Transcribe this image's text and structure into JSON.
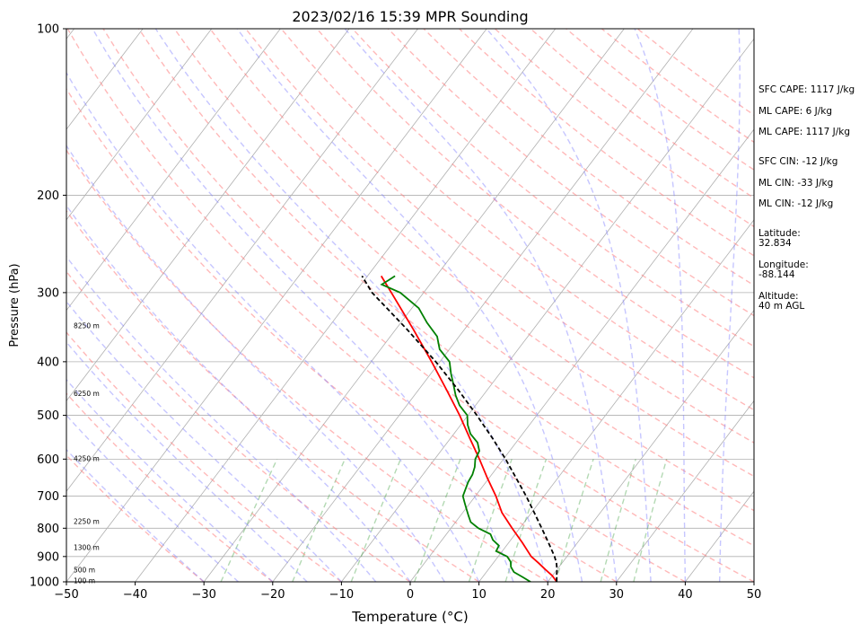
{
  "chart_data": {
    "type": "line",
    "title": "2023/02/16 15:39 MPR Sounding",
    "xlabel": "Temperature (°C)",
    "ylabel": "Pressure (hPa)",
    "xlim": [
      -50,
      50
    ],
    "ylim": [
      1000,
      100
    ],
    "y_scale": "log",
    "skew": true,
    "x_ticks": [
      -50,
      -40,
      -30,
      -20,
      -10,
      0,
      10,
      20,
      30,
      40,
      50
    ],
    "x_tick_labels": [
      "−50",
      "−40",
      "−30",
      "−20",
      "−10",
      "0",
      "10",
      "20",
      "30",
      "40",
      "50"
    ],
    "y_ticks": [
      100,
      200,
      300,
      400,
      500,
      600,
      700,
      800,
      900,
      1000
    ],
    "y_tick_labels": [
      "100",
      "200",
      "300",
      "400",
      "500",
      "600",
      "700",
      "800",
      "900",
      "1000"
    ],
    "grid": true,
    "height_labels": [
      {
        "p": 999,
        "text": "100 m"
      },
      {
        "p": 955,
        "text": "500 m"
      },
      {
        "p": 870,
        "text": "1300 m"
      },
      {
        "p": 780,
        "text": "2250 m"
      },
      {
        "p": 600,
        "text": "4250 m"
      },
      {
        "p": 458,
        "text": "6250 m"
      },
      {
        "p": 345,
        "text": "8250 m"
      }
    ],
    "series": [
      {
        "role": "temperature",
        "color": "#ff0000",
        "style": "solid",
        "p": [
          1000,
          975,
          950,
          925,
          900,
          850,
          800,
          750,
          700,
          650,
          600,
          550,
          500,
          450,
          400,
          350,
          300,
          280
        ],
        "t": [
          21.3,
          20.0,
          18.3,
          16.6,
          14.8,
          12.0,
          8.9,
          5.7,
          3.0,
          -0.2,
          -3.5,
          -7.2,
          -11.2,
          -15.9,
          -21.2,
          -27.4,
          -34.7,
          -38.0
        ]
      },
      {
        "role": "dewpoint",
        "color": "#008000",
        "style": "solid",
        "p": [
          1000,
          980,
          960,
          940,
          920,
          900,
          880,
          860,
          840,
          820,
          800,
          780,
          760,
          740,
          720,
          700,
          680,
          660,
          640,
          620,
          600,
          580,
          560,
          540,
          520,
          500,
          480,
          460,
          440,
          420,
          400,
          380,
          360,
          340,
          320,
          300,
          290,
          285,
          280
        ],
        "t": [
          17.5,
          15.8,
          14.0,
          13.0,
          12.4,
          11.3,
          9.1,
          8.9,
          7.4,
          6.4,
          4.0,
          2.2,
          1.2,
          0.2,
          -0.8,
          -1.8,
          -2.2,
          -2.6,
          -2.8,
          -3.3,
          -4.1,
          -4.4,
          -5.6,
          -7.6,
          -9.0,
          -10.1,
          -12.3,
          -14.0,
          -15.5,
          -17.1,
          -18.6,
          -21.4,
          -23.2,
          -26.2,
          -29.0,
          -33.4,
          -37.0,
          -36.5,
          -36.0
        ]
      },
      {
        "role": "parcel profile",
        "color": "#000000",
        "style": "dashed",
        "p": [
          1000,
          970,
          950,
          925,
          900,
          850,
          800,
          750,
          700,
          650,
          600,
          550,
          500,
          450,
          400,
          350,
          300,
          280
        ],
        "t": [
          21.3,
          20.5,
          20.0,
          19.2,
          18.2,
          15.8,
          13.2,
          10.4,
          7.4,
          4.0,
          0.3,
          -3.9,
          -8.7,
          -14.2,
          -20.6,
          -28.3,
          -37.5,
          -40.8
        ]
      }
    ]
  },
  "side_panel": {
    "sfc_cape": "SFC CAPE: 1117 J/kg",
    "ml_cape_1": "ML CAPE: 6 J/kg",
    "ml_cape_2": "ML CAPE: 1117 J/kg",
    "sfc_cin": "SFC CIN: -12 J/kg",
    "ml_cin_1": "ML CIN: -33 J/kg",
    "ml_cin_2": "ML CIN: -12 J/kg",
    "latitude_label": "Latitude:",
    "latitude_value": "32.834",
    "longitude_label": "Longitude:",
    "longitude_value": "-88.144",
    "altitude_label": "Altitude:",
    "altitude_value": "40 m AGL"
  }
}
